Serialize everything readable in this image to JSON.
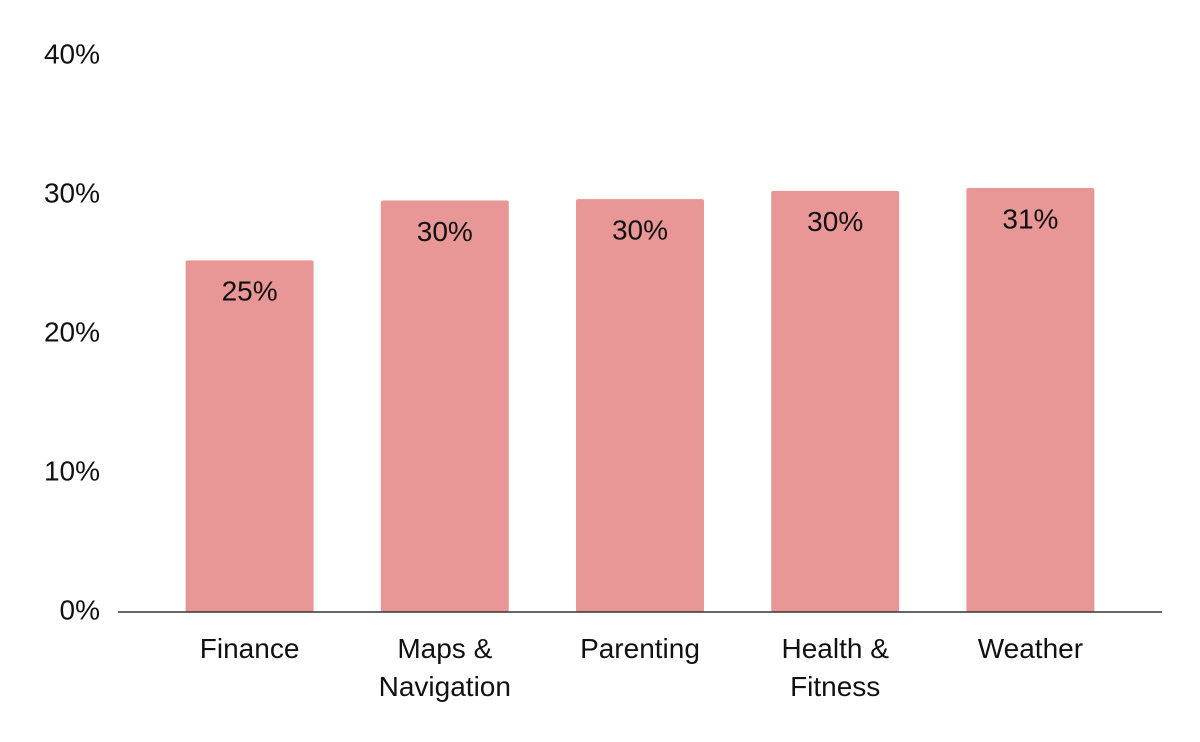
{
  "chart_data": {
    "type": "bar",
    "categories": [
      "Finance",
      "Maps & Navigation",
      "Parenting",
      "Health & Fitness",
      "Weather"
    ],
    "values": [
      25.3,
      29.6,
      29.7,
      30.3,
      30.5
    ],
    "value_labels": [
      "25%",
      "30%",
      "30%",
      "30%",
      "31%"
    ],
    "color": "#e99796",
    "ylim": [
      0,
      40
    ],
    "yticks": [
      {
        "value": 0,
        "label": "0%"
      },
      {
        "value": 10,
        "label": "10%"
      },
      {
        "value": 20,
        "label": "20%"
      },
      {
        "value": 30,
        "label": "30%"
      },
      {
        "value": 40,
        "label": "40%"
      }
    ],
    "grid": false
  }
}
